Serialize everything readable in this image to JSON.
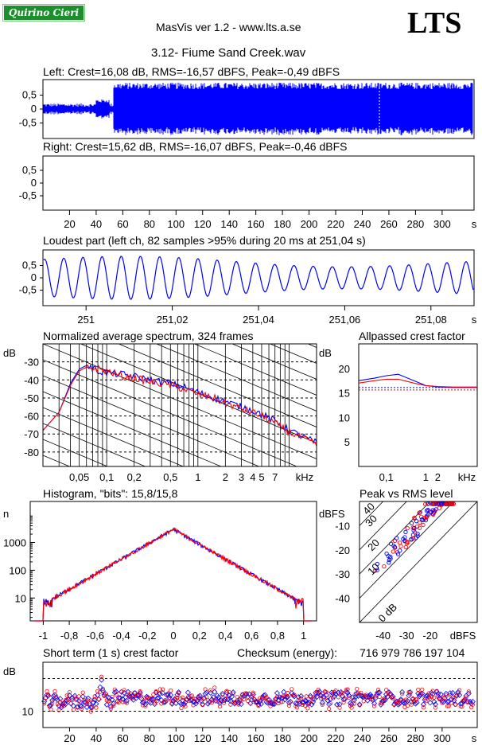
{
  "header": {
    "badge": "Quirino Cieri",
    "app_title": "MasVis ver 1.2 - www.lts.a.se",
    "logo": "LTS",
    "track_title": "3.12- Fiume Sand Creek.wav"
  },
  "colors": {
    "left": "#0000ff",
    "right": "#ff0000"
  },
  "chart_data": [
    {
      "type": "line",
      "id": "left-wave",
      "title": "Left: Crest=16,08 dB, RMS=-16,57 dBFS, Peak=-0,49 dBFS",
      "ylim": [
        -1,
        1
      ],
      "ytick_labels": [
        "0,5",
        "0",
        "-0,5"
      ],
      "yticks": [
        0.5,
        0,
        -0.5
      ],
      "xlim": [
        0,
        324
      ],
      "envelope_quiet_until_s": 53,
      "peak_amplitude": 0.95
    },
    {
      "type": "line",
      "id": "right-wave",
      "title": "Right: Crest=15,62 dB, RMS=-16,07 dBFS, Peak=-0,46 dBFS",
      "ylim": [
        -1,
        1
      ],
      "ytick_labels": [
        "0,5",
        "0",
        "-0,5"
      ],
      "yticks": [
        0.5,
        0,
        -0.5
      ],
      "xlim": [
        0,
        324
      ],
      "xtick_labels": [
        "20",
        "40",
        "60",
        "80",
        "100",
        "120",
        "140",
        "160",
        "180",
        "200",
        "220",
        "240",
        "260",
        "280",
        "300",
        "s"
      ],
      "xticks": [
        20,
        40,
        60,
        80,
        100,
        120,
        140,
        160,
        180,
        200,
        220,
        240,
        260,
        280,
        300
      ]
    },
    {
      "type": "line",
      "id": "loudest-part",
      "title": "Loudest part (left  ch, 82 samples >95% during 20 ms at 251,04 s)",
      "ylim": [
        -1,
        1
      ],
      "ytick_labels": [
        "0,5",
        "0",
        "-0,5"
      ],
      "yticks": [
        0.5,
        0,
        -0.5
      ],
      "xlim": [
        250.99,
        251.09
      ],
      "xtick_labels": [
        "251",
        "251,02",
        "251,04",
        "251,06",
        "251,08",
        "s"
      ],
      "xticks": [
        251,
        251.02,
        251.04,
        251.06,
        251.08
      ],
      "cycles": 22.5
    },
    {
      "type": "line",
      "id": "spectrum",
      "title": "Normalized average spectrum, 324 frames",
      "ylabel": "dB",
      "ylim": [
        -88,
        -20
      ],
      "ytick_labels": [
        "-30",
        "-40",
        "-50",
        "-60",
        "-70",
        "-80"
      ],
      "yticks": [
        -30,
        -40,
        -50,
        -60,
        -70,
        -80
      ],
      "xlabel": "kHz",
      "xscale": "log",
      "xlim": [
        0.02,
        20
      ],
      "xtick_labels": [
        "0,05",
        "0,1",
        "0,2",
        "0,5",
        "1",
        "2",
        "3",
        "4",
        "5",
        "7",
        "kHz"
      ],
      "xticks": [
        0.05,
        0.1,
        0.2,
        0.5,
        1,
        2,
        3,
        4,
        5,
        7
      ],
      "x": [
        0.02,
        0.03,
        0.04,
        0.05,
        0.06,
        0.08,
        0.1,
        0.15,
        0.2,
        0.3,
        0.5,
        0.7,
        1,
        1.5,
        2,
        3,
        4,
        5,
        7,
        10,
        15,
        20
      ],
      "series": [
        {
          "color": "blue",
          "values": [
            -68,
            -58,
            -42,
            -34,
            -32,
            -35,
            -36,
            -37,
            -38,
            -40,
            -42,
            -44,
            -47,
            -50,
            -52,
            -55,
            -57,
            -59,
            -63,
            -68,
            -72,
            -75
          ]
        },
        {
          "color": "red",
          "values": [
            -68,
            -58,
            -43,
            -35,
            -33,
            -34,
            -35,
            -38,
            -39,
            -41,
            -43,
            -45,
            -48,
            -50,
            -53,
            -56,
            -58,
            -60,
            -64,
            -69,
            -73,
            -76
          ]
        }
      ]
    },
    {
      "type": "line",
      "id": "allpassed-crest",
      "title": "Allpassed crest factor",
      "ylabel": "dB",
      "ylim": [
        0,
        25
      ],
      "ytick_labels": [
        "20",
        "15",
        "10",
        "5"
      ],
      "yticks": [
        20,
        15,
        10,
        5
      ],
      "xlabel": "kHz",
      "xscale": "log",
      "xlim": [
        0.02,
        20
      ],
      "xtick_labels": [
        "0,1",
        "1",
        "2",
        "kHz"
      ],
      "xticks": [
        0.1,
        1,
        2
      ],
      "x": [
        0.02,
        0.05,
        0.1,
        0.2,
        0.5,
        1,
        2,
        5,
        20
      ],
      "series": [
        {
          "color": "blue",
          "values": [
            17.5,
            18.0,
            18.5,
            18.8,
            17.5,
            16.5,
            16.2,
            16.1,
            16.1
          ]
        },
        {
          "color": "red",
          "values": [
            17.0,
            17.5,
            17.8,
            17.8,
            17.0,
            16.5,
            16.3,
            16.2,
            16.2
          ]
        }
      ],
      "reference_lines": [
        16.1,
        15.6
      ]
    },
    {
      "type": "line",
      "id": "histogram",
      "title": "Histogram, \"bits\": 15,8/15,8",
      "ylabel": "n",
      "yscale": "log",
      "ylim": [
        1.5,
        30000
      ],
      "ytick_labels": [
        "1000",
        "100",
        "10"
      ],
      "yticks": [
        1000,
        100,
        10
      ],
      "xlim": [
        -1.1,
        1.1
      ],
      "xtick_labels": [
        "-1",
        "-0,8",
        "-0,6",
        "-0,4",
        "-0,2",
        "0",
        "0,2",
        "0,4",
        "0,6",
        "0,8",
        "1"
      ],
      "xticks": [
        -1,
        -0.8,
        -0.6,
        -0.4,
        -0.2,
        0,
        0.2,
        0.4,
        0.6,
        0.8,
        1
      ],
      "peak_count": 3000
    },
    {
      "type": "scatter",
      "id": "peak-vs-rms",
      "title": "Peak vs RMS level",
      "ylabel": "dBFS",
      "xlabel": "dBFS",
      "xlim": [
        -50,
        0
      ],
      "ylim": [
        -50,
        0
      ],
      "ytick_labels": [
        "-10",
        "-20",
        "-30",
        "-40"
      ],
      "yticks": [
        -10,
        -20,
        -30,
        -40
      ],
      "xtick_labels": [
        "-40",
        "-30",
        "-20"
      ],
      "xticks": [
        -40,
        -30,
        -20
      ],
      "crest_lines_db": [
        0,
        10,
        20,
        30,
        40
      ],
      "crest_labels": [
        "0 dB",
        "10",
        "20",
        "30",
        "40"
      ]
    },
    {
      "type": "scatter",
      "id": "short-term-crest",
      "title": "Short term (1 s) crest factor",
      "ylabel": "dB",
      "ylim": [
        5,
        25
      ],
      "ytick_labels": [
        "10"
      ],
      "yticks": [
        10
      ],
      "dashed_lines": [
        10,
        20
      ],
      "xlim": [
        0,
        324
      ],
      "xtick_labels": [
        "20",
        "40",
        "60",
        "80",
        "100",
        "120",
        "140",
        "160",
        "180",
        "200",
        "220",
        "240",
        "260",
        "280",
        "300",
        "s"
      ],
      "xticks": [
        20,
        40,
        60,
        80,
        100,
        120,
        140,
        160,
        180,
        200,
        220,
        240,
        260,
        280,
        300
      ]
    }
  ],
  "checksum": {
    "label": "Checksum (energy):",
    "value": "716 979 786 197 104"
  }
}
